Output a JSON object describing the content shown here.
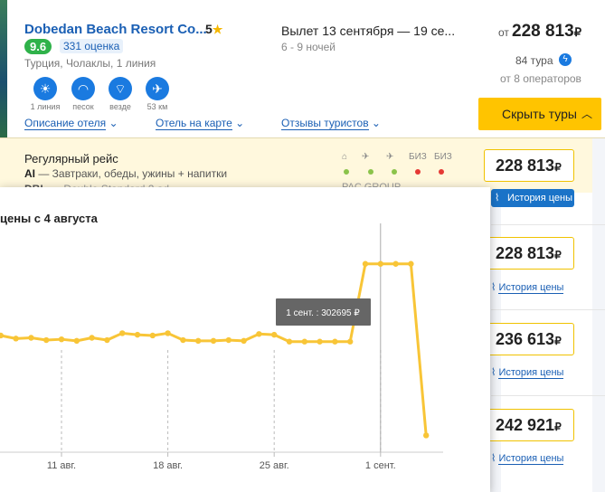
{
  "hotel": {
    "name": "Dobedan Beach Resort Co...",
    "stars": "5",
    "rating": "9.6",
    "reviews": "331 оценка",
    "location": "Турция, Чолаклы, 1 линия",
    "amenities": [
      {
        "icon": "beach-line-icon",
        "label": "1 линия"
      },
      {
        "icon": "sand-icon",
        "label": "песок"
      },
      {
        "icon": "wifi-icon",
        "label": "везде"
      },
      {
        "icon": "airport-distance-icon",
        "label": "53 км"
      }
    ],
    "links": {
      "description": "Описание отеля",
      "map": "Отель на карте",
      "reviews": "Отзывы туристов"
    }
  },
  "flight": {
    "dates": "Вылет 13 сентября — 19 се...",
    "nights": "6 - 9 ночей"
  },
  "price": {
    "from": "от",
    "value": "228 813",
    "currency": "₽",
    "tours": "84 тура",
    "operators": "от 8 операторов",
    "button": "Скрыть туры"
  },
  "offer": {
    "flight_type": "Регулярный рейс",
    "meal_code": "AI",
    "meal_desc": " — Завтраки, обеды, ужины + напитки",
    "room_code": "DBL",
    "room_desc": " — Double Standard 2 ad",
    "operator": "PAC GROUP",
    "biz1": "БИЗ",
    "biz2": "БИЗ",
    "status_colors": [
      "#8bc34a",
      "#8bc34a",
      "#8bc34a",
      "#e53935",
      "#e53935"
    ]
  },
  "prices": [
    {
      "value": "228 813",
      "currency": "₽",
      "history": "История цены"
    },
    {
      "value": "228 813",
      "currency": "₽",
      "history": "История цены"
    },
    {
      "value": "236 613",
      "currency": "₽",
      "history": "История цены"
    },
    {
      "value": "242 921",
      "currency": "₽",
      "history": "История цены"
    }
  ],
  "popup": {
    "title": "цены с 4 августа"
  },
  "chart_data": {
    "type": "line",
    "title": "цены с 4 августа",
    "xlabel": "",
    "ylabel": "",
    "x_ticks": [
      "11 авг.",
      "18 авг.",
      "25 авг.",
      "1 сент."
    ],
    "series": [
      {
        "color": "#f8c537",
        "x": [
          6,
          7,
          8,
          9,
          10,
          11,
          12,
          13,
          14,
          15,
          16,
          17,
          18,
          19,
          20,
          21,
          22,
          23,
          24,
          25,
          26,
          27,
          28,
          29,
          30,
          31,
          32,
          33,
          34,
          35
        ],
        "y": [
          293200,
          293300,
          292900,
          293000,
          292700,
          292800,
          292600,
          293000,
          292700,
          293600,
          293400,
          293300,
          293600,
          292700,
          292600,
          292600,
          292700,
          292600,
          293500,
          293400,
          292500,
          292500,
          292500,
          292500,
          292500,
          302695,
          302695,
          302695,
          302695,
          280200
        ]
      }
    ],
    "tooltip": "1 сент. : 302695 ₽",
    "hover_x": 32,
    "ylim": [
      278000,
      308000
    ],
    "grid": "vertical"
  }
}
